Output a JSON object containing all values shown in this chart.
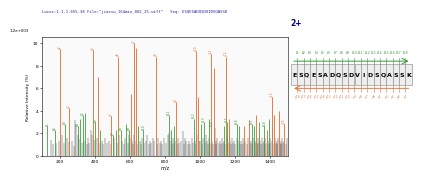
{
  "title_line1": "Locus:1.1.1.655.38 File:\"jiassu_164min_002_25.wiff\"",
  "title_line2": "Seq: ESQESADQSDVIDSQASSK",
  "charge_label": "2+",
  "ylabel": "Relative Intensity (%)",
  "xlabel": "m/z",
  "xlim": [
    100,
    1500
  ],
  "ylim_pct": [
    0,
    10.5
  ],
  "scale_label": "1.2e+003",
  "peptide_seq": [
    "E",
    "S",
    "Q",
    "E",
    "S",
    "A",
    "D",
    "Q",
    "S",
    "D",
    "V",
    "I",
    "D",
    "S",
    "Q",
    "A",
    "S",
    "S",
    "K"
  ],
  "bg_color": "#ffffff",
  "plot_bg": "#fafafa",
  "orange_color": "#E07840",
  "green_color": "#3A9A3A",
  "gray_color": "#555555",
  "dark_color": "#222222",
  "title_color": "#2222aa",
  "orange_peaks": [
    [
      204.1,
      9.5,
      "y2"
    ],
    [
      253.1,
      4.2,
      "y3"
    ],
    [
      390.2,
      9.4,
      "y4"
    ],
    [
      420.2,
      7.0,
      ""
    ],
    [
      491.2,
      3.5,
      "y5"
    ],
    [
      533.2,
      8.8,
      "y6"
    ],
    [
      607.2,
      5.5,
      ""
    ],
    [
      621.2,
      10.0,
      "y7"
    ],
    [
      636.2,
      9.6,
      ""
    ],
    [
      748.3,
      8.8,
      "y8"
    ],
    [
      864.3,
      4.8,
      "y9"
    ],
    [
      976.4,
      9.3,
      "y10"
    ],
    [
      990.4,
      5.2,
      ""
    ],
    [
      1063.4,
      9.0,
      "y11"
    ],
    [
      1077.4,
      7.8,
      ""
    ],
    [
      1148.5,
      8.8,
      "y12"
    ],
    [
      1163.5,
      3.3,
      ""
    ],
    [
      1249.5,
      2.6,
      ""
    ],
    [
      1277.5,
      3.2,
      ""
    ],
    [
      1320.5,
      3.6,
      ""
    ],
    [
      1378.5,
      2.3,
      ""
    ],
    [
      1406.5,
      5.2,
      "y15"
    ],
    [
      1420.5,
      3.6,
      ""
    ],
    [
      1449.5,
      4.0,
      ""
    ],
    [
      1477.5,
      2.8,
      "y16"
    ]
  ],
  "green_peaks": [
    [
      130.1,
      2.6,
      "b1"
    ],
    [
      175.1,
      2.3,
      "b2"
    ],
    [
      232.1,
      2.8,
      "b3"
    ],
    [
      303.1,
      2.6,
      "b4"
    ],
    [
      318.1,
      3.3,
      ""
    ],
    [
      332.1,
      3.6,
      "b5"
    ],
    [
      347.1,
      3.8,
      ""
    ],
    [
      404.2,
      3.0,
      "b6"
    ],
    [
      432.2,
      2.3,
      ""
    ],
    [
      503.2,
      1.8,
      "b7"
    ],
    [
      519.2,
      2.3,
      ""
    ],
    [
      547.2,
      2.3,
      "b8"
    ],
    [
      580.2,
      2.8,
      ""
    ],
    [
      593.2,
      2.3,
      "b9"
    ],
    [
      648.2,
      2.6,
      ""
    ],
    [
      677.3,
      2.3,
      "b10"
    ],
    [
      820.3,
      3.6,
      "b11"
    ],
    [
      835.3,
      2.3,
      ""
    ],
    [
      850.3,
      2.6,
      ""
    ],
    [
      965.4,
      3.3,
      "b12"
    ],
    [
      1006.4,
      2.8,
      ""
    ],
    [
      1021.4,
      3.0,
      "b13"
    ],
    [
      1049.4,
      3.3,
      ""
    ],
    [
      1064.4,
      2.6,
      "b14"
    ],
    [
      1135.5,
      2.6,
      ""
    ],
    [
      1150.5,
      3.0,
      "b15"
    ],
    [
      1165.5,
      2.3,
      ""
    ],
    [
      1208.5,
      2.8,
      "b16"
    ],
    [
      1223.5,
      2.6,
      ""
    ],
    [
      1293.5,
      2.8,
      "b17"
    ],
    [
      1308.5,
      2.6,
      ""
    ],
    [
      1336.6,
      3.0,
      ""
    ],
    [
      1365.6,
      2.6,
      "b18"
    ],
    [
      1393.6,
      3.3,
      ""
    ],
    [
      1408.6,
      2.6,
      ""
    ]
  ],
  "gray_peaks": [
    [
      150,
      1.4
    ],
    [
      165,
      1.0
    ],
    [
      180,
      1.1
    ],
    [
      195,
      1.3
    ],
    [
      215,
      1.8
    ],
    [
      225,
      1.1
    ],
    [
      240,
      1.6
    ],
    [
      255,
      1.2
    ],
    [
      270,
      1.3
    ],
    [
      280,
      0.9
    ],
    [
      290,
      3.2
    ],
    [
      295,
      2.8
    ],
    [
      305,
      1.8
    ],
    [
      310,
      1.5
    ],
    [
      325,
      1.1
    ],
    [
      340,
      1.3
    ],
    [
      355,
      1.0
    ],
    [
      360,
      1.6
    ],
    [
      370,
      1.1
    ],
    [
      380,
      2.3
    ],
    [
      385,
      1.8
    ],
    [
      395,
      1.4
    ],
    [
      415,
      1.6
    ],
    [
      425,
      1.1
    ],
    [
      440,
      1.3
    ],
    [
      450,
      1.0
    ],
    [
      460,
      1.6
    ],
    [
      470,
      1.1
    ],
    [
      480,
      1.3
    ],
    [
      495,
      1.0
    ],
    [
      510,
      1.6
    ],
    [
      525,
      1.1
    ],
    [
      540,
      1.8
    ],
    [
      555,
      1.3
    ],
    [
      565,
      1.0
    ],
    [
      575,
      1.6
    ],
    [
      588,
      1.1
    ],
    [
      595,
      1.8
    ],
    [
      605,
      1.6
    ],
    [
      612,
      1.3
    ],
    [
      618,
      1.0
    ],
    [
      625,
      1.8
    ],
    [
      632,
      1.3
    ],
    [
      640,
      1.0
    ],
    [
      655,
      1.3
    ],
    [
      665,
      1.0
    ],
    [
      672,
      1.6
    ],
    [
      682,
      1.1
    ],
    [
      692,
      1.3
    ],
    [
      700,
      1.8
    ],
    [
      708,
      1.0
    ],
    [
      715,
      1.3
    ],
    [
      722,
      1.1
    ],
    [
      732,
      1.6
    ],
    [
      740,
      1.3
    ],
    [
      755,
      1.0
    ],
    [
      760,
      1.6
    ],
    [
      770,
      1.1
    ],
    [
      778,
      1.3
    ],
    [
      785,
      1.0
    ],
    [
      795,
      1.6
    ],
    [
      805,
      1.1
    ],
    [
      815,
      1.8
    ],
    [
      825,
      2.0
    ],
    [
      832,
      1.3
    ],
    [
      840,
      1.0
    ],
    [
      845,
      1.6
    ],
    [
      852,
      1.1
    ],
    [
      858,
      1.3
    ],
    [
      868,
      1.0
    ],
    [
      875,
      1.6
    ],
    [
      882,
      1.1
    ],
    [
      890,
      1.3
    ],
    [
      900,
      2.2
    ],
    [
      908,
      1.0
    ],
    [
      915,
      1.6
    ],
    [
      922,
      1.3
    ],
    [
      930,
      1.0
    ],
    [
      938,
      1.3
    ],
    [
      945,
      1.0
    ],
    [
      952,
      1.6
    ],
    [
      958,
      1.1
    ],
    [
      968,
      1.3
    ],
    [
      975,
      1.0
    ],
    [
      982,
      1.8
    ],
    [
      992,
      1.3
    ],
    [
      1000,
      1.3
    ],
    [
      1008,
      1.0
    ],
    [
      1015,
      1.6
    ],
    [
      1025,
      1.1
    ],
    [
      1032,
      1.8
    ],
    [
      1040,
      1.3
    ],
    [
      1045,
      1.0
    ],
    [
      1052,
      1.6
    ],
    [
      1058,
      1.1
    ],
    [
      1068,
      1.3
    ],
    [
      1075,
      1.0
    ],
    [
      1082,
      2.5
    ],
    [
      1088,
      1.3
    ],
    [
      1092,
      1.0
    ],
    [
      1098,
      1.6
    ],
    [
      1105,
      1.1
    ],
    [
      1112,
      1.3
    ],
    [
      1118,
      1.0
    ],
    [
      1125,
      1.6
    ],
    [
      1130,
      1.1
    ],
    [
      1138,
      1.3
    ],
    [
      1142,
      1.0
    ],
    [
      1155,
      1.6
    ],
    [
      1160,
      1.1
    ],
    [
      1168,
      1.3
    ],
    [
      1175,
      1.0
    ],
    [
      1182,
      1.6
    ],
    [
      1188,
      1.1
    ],
    [
      1195,
      1.3
    ],
    [
      1200,
      1.0
    ],
    [
      1210,
      1.6
    ],
    [
      1215,
      1.3
    ],
    [
      1225,
      1.0
    ],
    [
      1232,
      1.3
    ],
    [
      1240,
      1.0
    ],
    [
      1245,
      1.6
    ],
    [
      1252,
      1.1
    ],
    [
      1258,
      1.3
    ],
    [
      1265,
      1.0
    ],
    [
      1270,
      1.6
    ],
    [
      1282,
      1.1
    ],
    [
      1288,
      1.3
    ],
    [
      1295,
      1.0
    ],
    [
      1302,
      1.6
    ],
    [
      1310,
      1.1
    ],
    [
      1315,
      1.3
    ],
    [
      1322,
      1.0
    ],
    [
      1328,
      1.6
    ],
    [
      1332,
      1.1
    ],
    [
      1340,
      1.3
    ],
    [
      1345,
      1.0
    ],
    [
      1352,
      1.6
    ],
    [
      1358,
      1.1
    ],
    [
      1362,
      1.3
    ],
    [
      1368,
      1.0
    ],
    [
      1372,
      1.6
    ],
    [
      1380,
      1.1
    ],
    [
      1385,
      1.3
    ],
    [
      1390,
      1.0
    ],
    [
      1395,
      1.6
    ],
    [
      1400,
      1.1
    ],
    [
      1410,
      1.3
    ],
    [
      1415,
      1.0
    ],
    [
      1425,
      1.6
    ],
    [
      1430,
      1.1
    ],
    [
      1435,
      1.3
    ],
    [
      1440,
      1.0
    ],
    [
      1445,
      1.6
    ],
    [
      1452,
      1.1
    ],
    [
      1458,
      1.3
    ],
    [
      1462,
      1.0
    ],
    [
      1468,
      1.6
    ],
    [
      1472,
      1.1
    ],
    [
      1480,
      1.3
    ],
    [
      1488,
      1.0
    ],
    [
      1492,
      1.6
    ]
  ]
}
